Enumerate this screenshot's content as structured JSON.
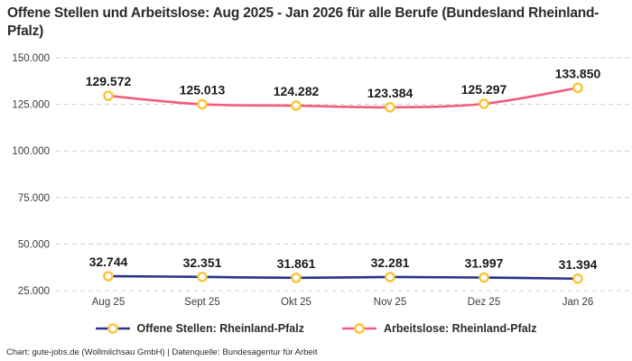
{
  "title": "Offene Stellen und Arbeitslose: Aug 2025 - Jan 2026 für alle Berufe (Bundesland Rheinland-Pfalz)",
  "footer": "Chart: gute-jobs.de (Wollmilchsau GmbH) | Datenquelle: Bundesagentur für Arbeit",
  "colors": {
    "open_positions_line": "#27348b",
    "unemployed_line": "#f25c7e",
    "marker_ring": "#fbc437",
    "marker_fill": "#ffffff",
    "grid": "#cccccc",
    "tick_text": "#3c3c3c",
    "data_label": "#1a1a1a"
  },
  "chart_data": {
    "type": "line",
    "title": "Offene Stellen und Arbeitslose: Aug 2025 - Jan 2026 für alle Berufe (Bundesland Rheinland-Pfalz)",
    "categories": [
      "Aug 25",
      "Sept 25",
      "Okt 25",
      "Nov 25",
      "Dez 25",
      "Jan 26"
    ],
    "series": [
      {
        "name": "Offene Stellen: Rheinland-Pfalz",
        "color_key": "open_positions_line",
        "values": [
          32744,
          32351,
          31861,
          32281,
          31997,
          31394
        ],
        "value_labels": [
          "32.744",
          "32.351",
          "31.861",
          "32.281",
          "31.997",
          "31.394"
        ]
      },
      {
        "name": "Arbeitslose: Rheinland-Pfalz",
        "color_key": "unemployed_line",
        "values": [
          129572,
          125013,
          124282,
          123384,
          125297,
          133850
        ],
        "value_labels": [
          "129.572",
          "125.013",
          "124.282",
          "123.384",
          "125.297",
          "133.850"
        ]
      }
    ],
    "y_ticks": [
      25000,
      50000,
      75000,
      100000,
      125000,
      150000
    ],
    "y_tick_labels": [
      "25.000",
      "50.000",
      "75.000",
      "100.000",
      "125.000",
      "150.000"
    ],
    "ylim": [
      25000,
      150000
    ],
    "grid": "horizontal-dashed",
    "legend_position": "bottom",
    "marker": "circle-ring-yellow"
  }
}
